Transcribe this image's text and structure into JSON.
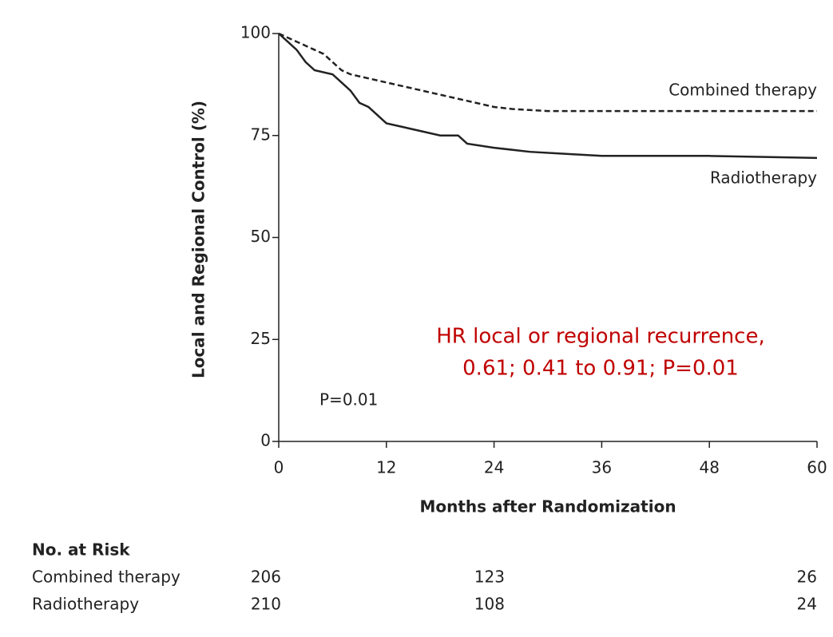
{
  "chart_data": {
    "type": "line",
    "xlabel": "Months after Randomization",
    "ylabel": "Local and Regional Control (%)",
    "xlim": [
      0,
      60
    ],
    "ylim": [
      0,
      100
    ],
    "xticks": [
      0,
      12,
      24,
      36,
      48,
      60
    ],
    "yticks": [
      0,
      25,
      50,
      75,
      100
    ],
    "series": [
      {
        "name": "Combined therapy",
        "color": "#222222",
        "dash": true,
        "x": [
          0,
          1,
          2,
          3,
          4,
          5,
          6,
          7,
          8,
          10,
          12,
          14,
          16,
          18,
          20,
          22,
          24,
          26,
          30,
          40,
          50,
          60
        ],
        "values": [
          100,
          99,
          98,
          97,
          96,
          95,
          93,
          91,
          90,
          89,
          88,
          87,
          86,
          85,
          84,
          83,
          82,
          81.5,
          81,
          81,
          81,
          81
        ]
      },
      {
        "name": "Radiotherapy",
        "color": "#222222",
        "dash": false,
        "x": [
          0,
          1,
          2,
          3,
          4,
          6,
          7,
          8,
          9,
          10,
          11,
          12,
          14,
          16,
          18,
          20,
          21,
          24,
          28,
          32,
          36,
          48,
          60
        ],
        "values": [
          100,
          98,
          96,
          93,
          91,
          90,
          88,
          86,
          83,
          82,
          80,
          78,
          77,
          76,
          75,
          75,
          73,
          72,
          71,
          70.5,
          70,
          70,
          69.5
        ]
      }
    ],
    "annotations": [
      "P=0.01",
      "HR local or regional recurrence,",
      "0.61; 0.41 to 0.91; P=0.01"
    ],
    "risk_table": {
      "title": "No. at Risk",
      "rows": [
        {
          "name": "Combined therapy",
          "values": [
            206,
            123,
            26
          ]
        },
        {
          "name": "Radiotherapy",
          "values": [
            210,
            108,
            24
          ]
        }
      ]
    }
  }
}
